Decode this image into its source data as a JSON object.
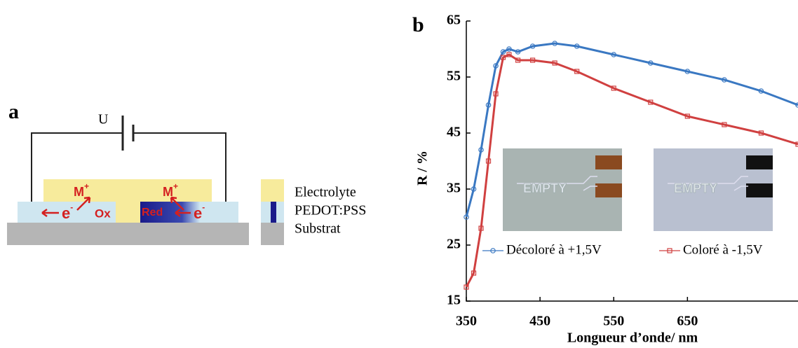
{
  "diagram": {
    "panel": "a",
    "voltage": "U",
    "ion": "M",
    "ion_charge": "+",
    "electron": "e",
    "electron_charge": "-",
    "oxidized": "Ox",
    "reduced": "Red",
    "legend": [
      "Electrolyte",
      "PEDOT:PSS",
      "Substrat"
    ]
  },
  "chart_data": {
    "type": "line",
    "panel": "b",
    "x_label": "Longueur d’onde/ nm",
    "y_label": "R / %",
    "xlim": [
      350,
      800
    ],
    "ylim": [
      15,
      65
    ],
    "xticks": [
      350,
      450,
      550,
      650
    ],
    "yticks": [
      15,
      25,
      35,
      45,
      55,
      65
    ],
    "x": [
      350,
      360,
      370,
      380,
      390,
      400,
      408,
      420,
      440,
      470,
      500,
      550,
      600,
      650,
      700,
      750,
      800
    ],
    "series": [
      {
        "name": "Décoloré à +1,5V",
        "color": "#3a78c2",
        "marker": "circle",
        "values": [
          30,
          35,
          42,
          50,
          57,
          59.5,
          60,
          59.5,
          60.5,
          61,
          60.5,
          59,
          57.5,
          56,
          54.5,
          52.5,
          50
        ]
      },
      {
        "name": "Coloré à -1,5V",
        "color": "#d04040",
        "marker": "square",
        "values": [
          17.5,
          20,
          28,
          40,
          52,
          58.5,
          59,
          58,
          58,
          57.5,
          56,
          53,
          50.5,
          48,
          46.5,
          45,
          43
        ]
      }
    ],
    "photos": [
      "EMPTY",
      "EMPTY"
    ]
  }
}
